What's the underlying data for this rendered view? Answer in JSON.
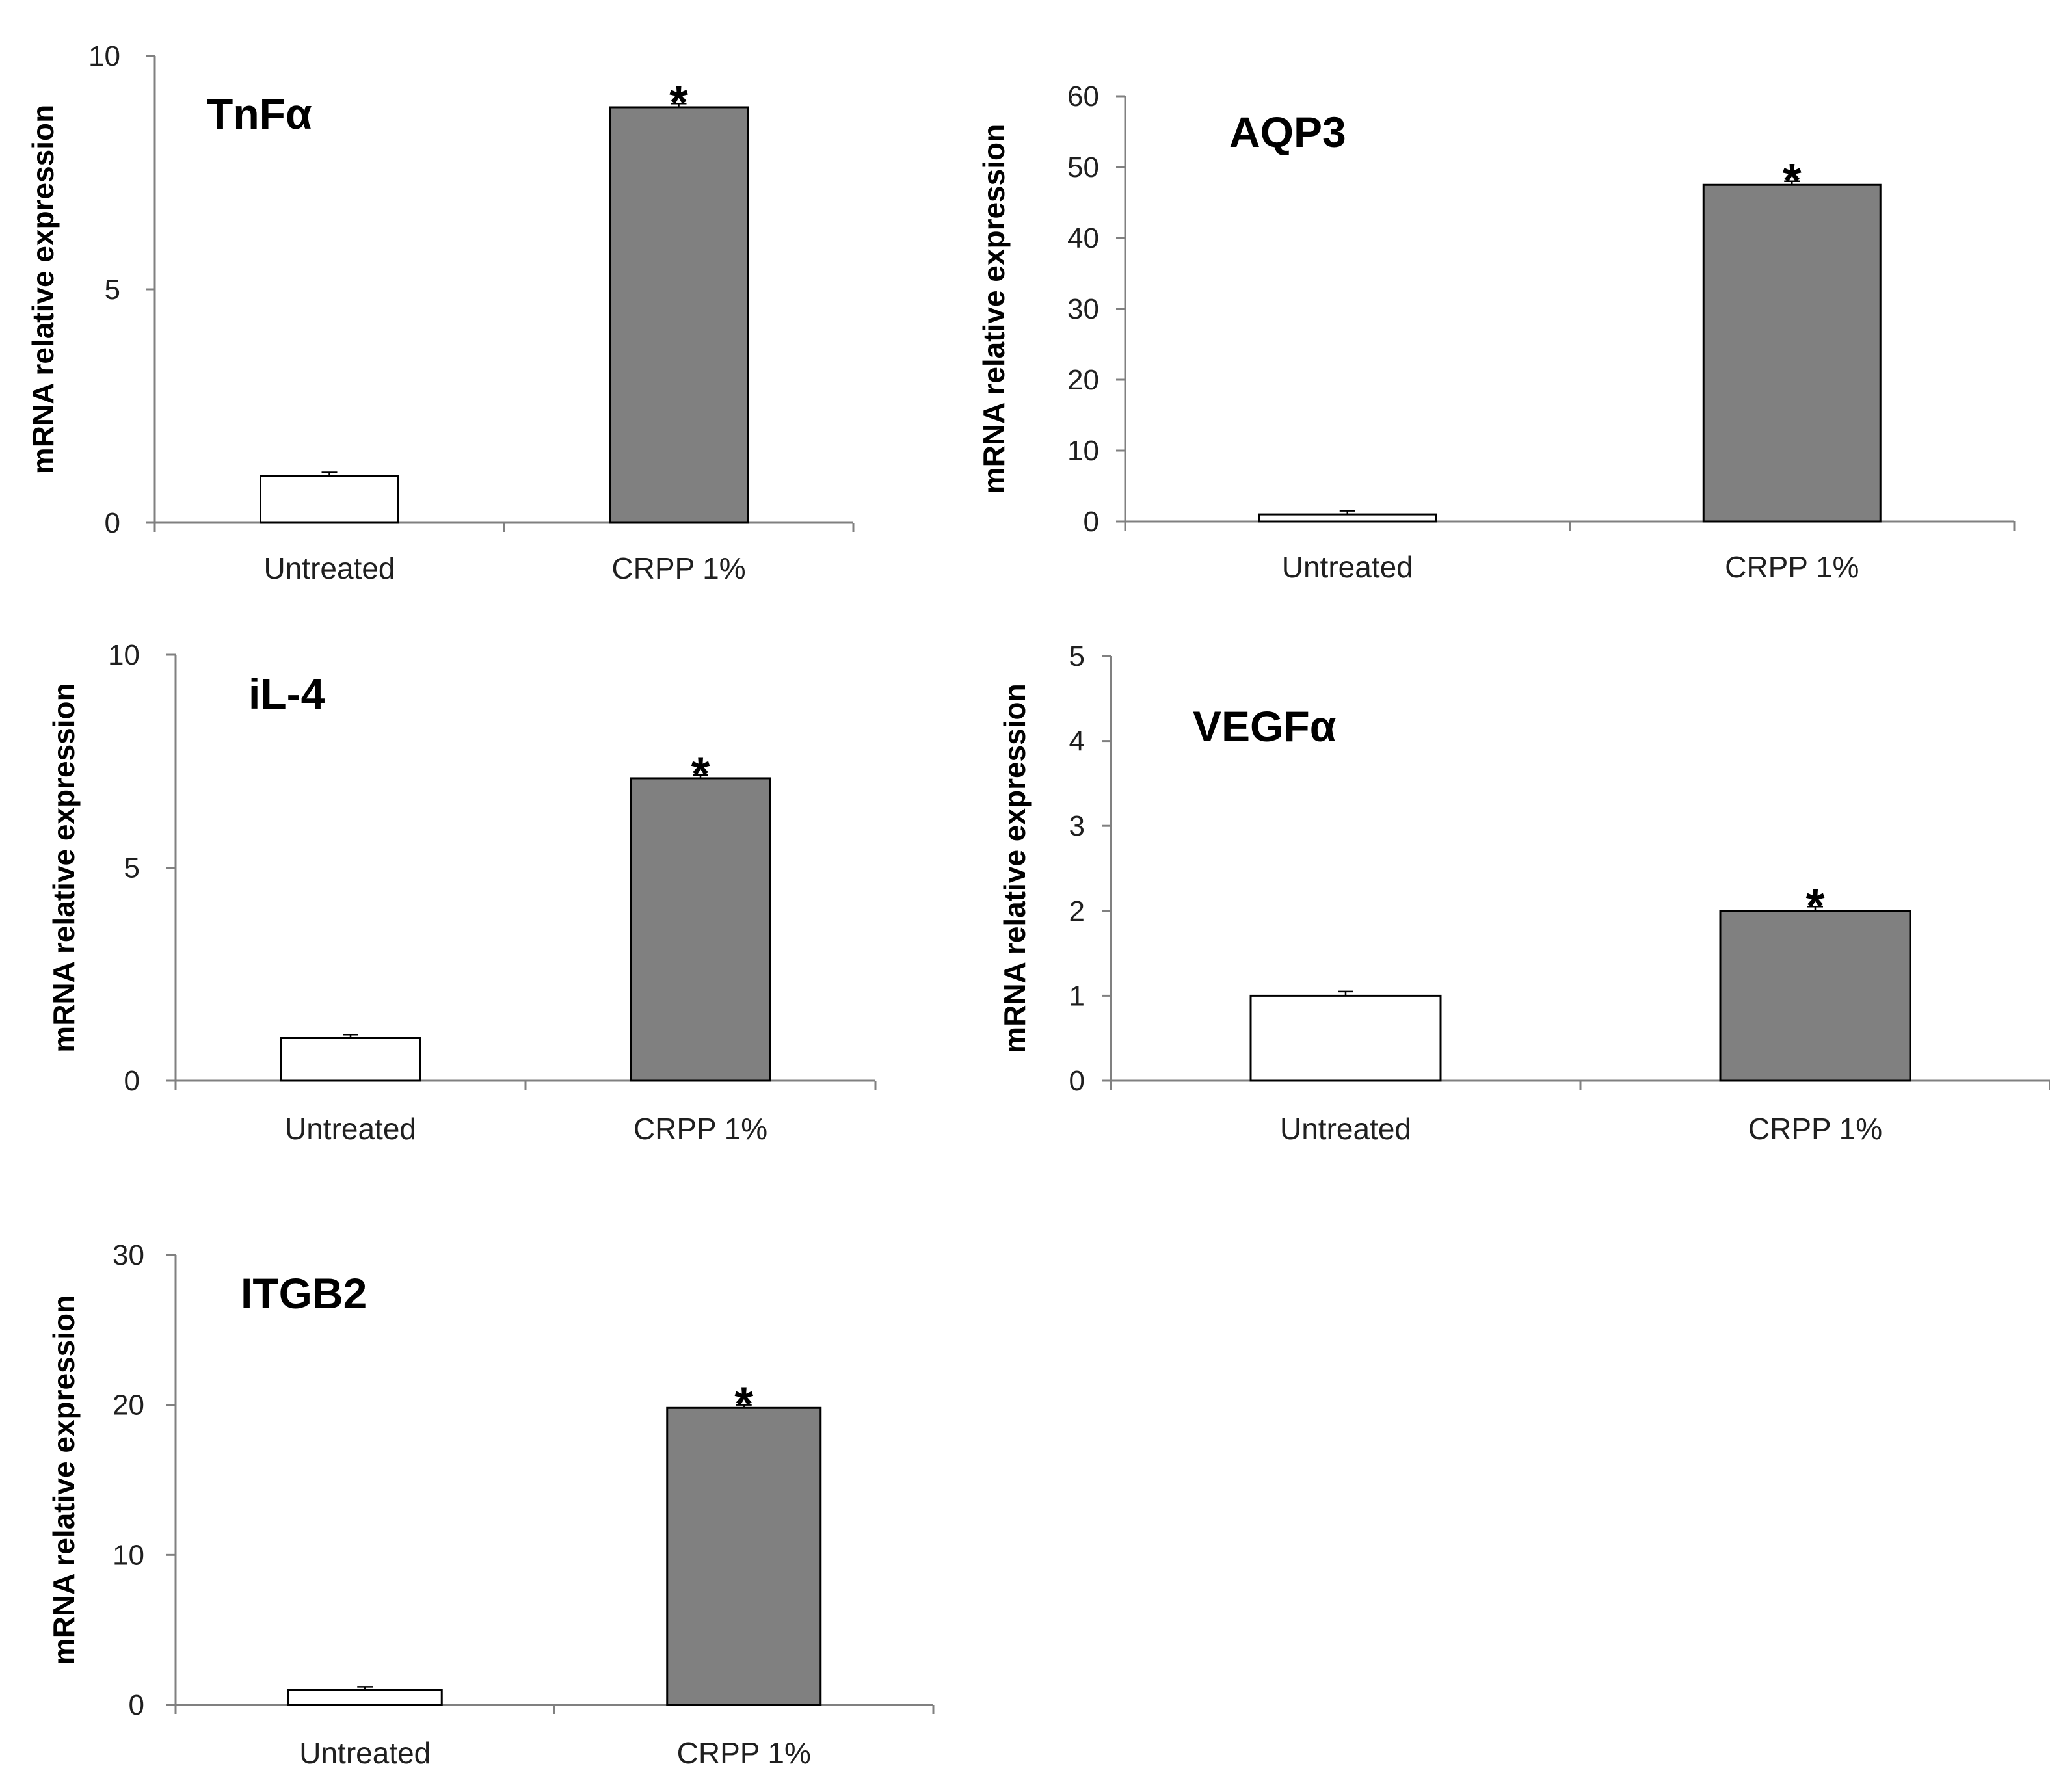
{
  "chart_data": [
    {
      "type": "bar",
      "title": "TnFα",
      "ylabel": "mRNA relative expression",
      "categories": [
        "Untreated",
        "CRPP 1%"
      ],
      "values": [
        1.0,
        8.9
      ],
      "error": [
        0.08,
        0.08
      ],
      "significance": [
        "",
        "*"
      ],
      "ylim": [
        0,
        10
      ],
      "yticks": [
        0,
        5,
        10
      ],
      "colors": [
        "#ffffff",
        "#808080"
      ]
    },
    {
      "type": "bar",
      "title": "AQP3",
      "ylabel": "mRNA relative expression",
      "categories": [
        "Untreated",
        "CRPP 1%"
      ],
      "values": [
        1.0,
        47.5
      ],
      "error": [
        0.5,
        0.5
      ],
      "significance": [
        "",
        "*"
      ],
      "ylim": [
        0,
        60
      ],
      "yticks": [
        0,
        10,
        20,
        30,
        40,
        50,
        60
      ],
      "colors": [
        "#ffffff",
        "#808080"
      ]
    },
    {
      "type": "bar",
      "title": "iL-4",
      "ylabel": "mRNA relative expression",
      "categories": [
        "Untreated",
        "CRPP 1%"
      ],
      "values": [
        1.0,
        7.1
      ],
      "error": [
        0.08,
        0.08
      ],
      "significance": [
        "",
        "*"
      ],
      "ylim": [
        0,
        10
      ],
      "yticks": [
        0,
        5,
        10
      ],
      "colors": [
        "#ffffff",
        "#808080"
      ]
    },
    {
      "type": "bar",
      "title": "VEGFα",
      "ylabel": "mRNA relative expression",
      "categories": [
        "Untreated",
        "CRPP 1%"
      ],
      "values": [
        1.0,
        2.0
      ],
      "error": [
        0.05,
        0.05
      ],
      "significance": [
        "",
        "*"
      ],
      "ylim": [
        0,
        5
      ],
      "yticks": [
        0,
        1,
        2,
        3,
        4,
        5
      ],
      "colors": [
        "#ffffff",
        "#808080"
      ]
    },
    {
      "type": "bar",
      "title": "ITGB2",
      "ylabel": "mRNA relative expression",
      "categories": [
        "Untreated",
        "CRPP 1%"
      ],
      "values": [
        1.0,
        19.8
      ],
      "error": [
        0.2,
        0.2
      ],
      "significance": [
        "",
        "*"
      ],
      "ylim": [
        0,
        30
      ],
      "yticks": [
        0,
        10,
        20,
        30
      ],
      "colors": [
        "#ffffff",
        "#808080"
      ]
    }
  ]
}
